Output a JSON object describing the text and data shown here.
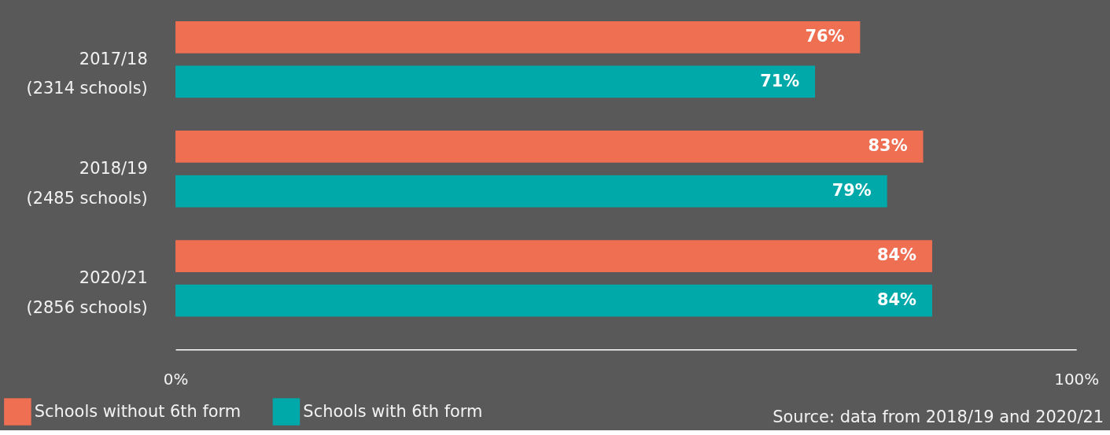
{
  "chart_data": {
    "type": "bar",
    "orientation": "horizontal",
    "categories": [
      "2017/18\n(2314 schools)",
      "2018/19\n(2485 schools)",
      "2020/21\n(2856 schools)"
    ],
    "series": [
      {
        "name": "Schools without 6th form",
        "color": "#ef6f53",
        "values": [
          76,
          83,
          84
        ],
        "value_labels": [
          "76%",
          "83%",
          "84%"
        ]
      },
      {
        "name": "Schools with 6th form",
        "color": "#00a9a9",
        "values": [
          71,
          79,
          84
        ],
        "value_labels": [
          "71%",
          "79%",
          "84%"
        ]
      }
    ],
    "xlim": [
      0,
      100
    ],
    "xticks": [
      {
        "value": 0,
        "label": "0%"
      },
      {
        "value": 100,
        "label": "100%"
      }
    ],
    "grid": false,
    "legend": "bottom left",
    "annotations": [
      "Source: data from 2018/19 and 2020/21"
    ]
  }
}
